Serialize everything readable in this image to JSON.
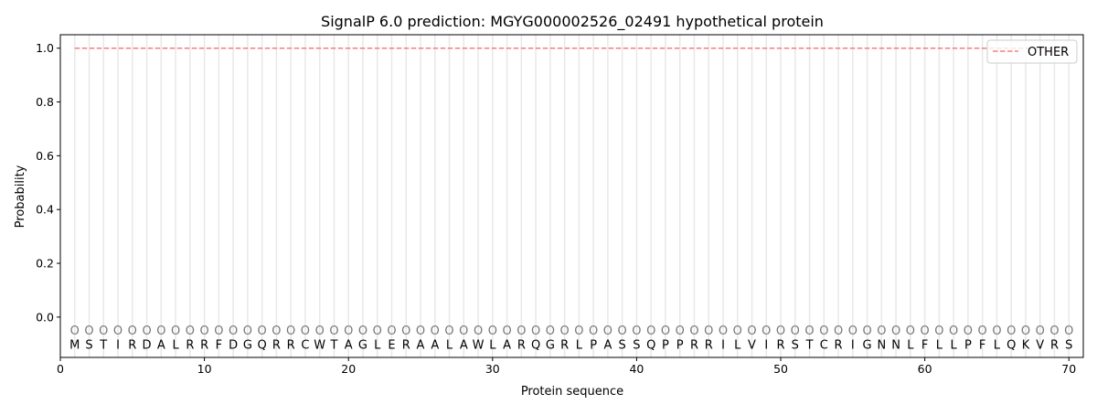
{
  "chart_data": {
    "type": "line",
    "title": "SignalP 6.0 prediction: MGYG000002526_02491 hypothetical protein",
    "xlabel": "Protein sequence",
    "ylabel": "Probability",
    "xlim": [
      0,
      71
    ],
    "ylim": [
      -0.15,
      1.05
    ],
    "xticks": [
      0,
      10,
      20,
      30,
      40,
      50,
      60,
      70
    ],
    "yticks": [
      0.0,
      0.2,
      0.4,
      0.6,
      0.8,
      1.0
    ],
    "ytick_labels": [
      "0.0",
      "0.2",
      "0.4",
      "0.6",
      "0.8",
      "1.0"
    ],
    "grid": "vertical lines at each residue",
    "legend_position": "top-right",
    "sequence": [
      "M",
      "S",
      "T",
      "I",
      "R",
      "D",
      "A",
      "L",
      "R",
      "R",
      "F",
      "D",
      "G",
      "Q",
      "R",
      "R",
      "C",
      "W",
      "T",
      "A",
      "G",
      "L",
      "E",
      "R",
      "A",
      "A",
      "L",
      "A",
      "W",
      "L",
      "A",
      "R",
      "Q",
      "G",
      "R",
      "L",
      "P",
      "A",
      "S",
      "S",
      "Q",
      "P",
      "P",
      "R",
      "R",
      "I",
      "L",
      "V",
      "I",
      "R",
      "S",
      "T",
      "C",
      "R",
      "I",
      "G",
      "N",
      "N",
      "L",
      "F",
      "L",
      "L",
      "P",
      "F",
      "L",
      "Q",
      "K",
      "V",
      "R",
      "S"
    ],
    "region_labels": "O",
    "series": [
      {
        "name": "OTHER",
        "color": "#f08080",
        "style": "dashed",
        "x_range": [
          1,
          70
        ],
        "value": 1.0
      }
    ]
  }
}
